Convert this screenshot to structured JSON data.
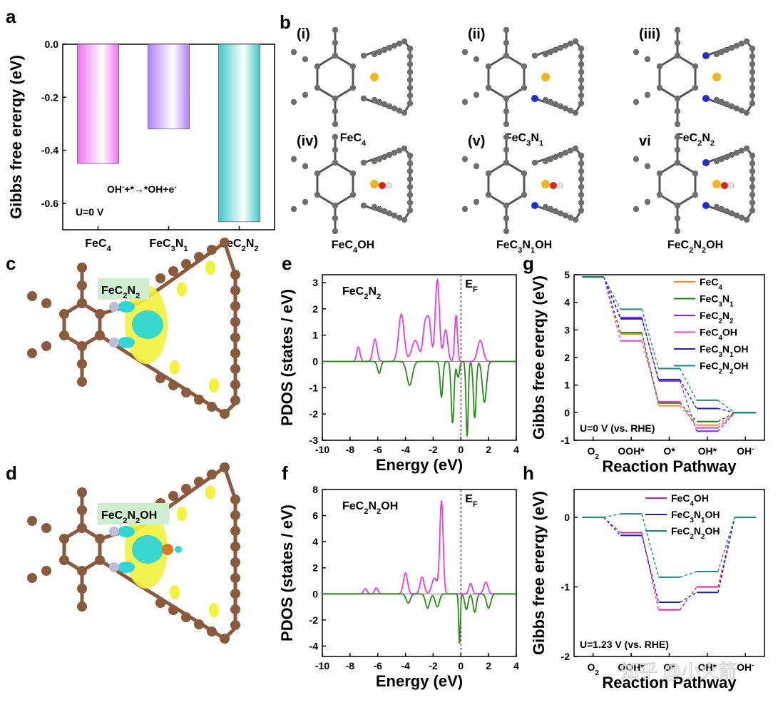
{
  "panels": {
    "a": "a",
    "b": "b",
    "c": "c",
    "d": "d",
    "e": "e",
    "f": "f",
    "g": "g",
    "h": "h"
  },
  "colors": {
    "carbon": "#6e6e6e",
    "fe": "#f2b51e",
    "n": "#1f2fd0",
    "o": "#e0201d",
    "h": "#e8e8e8",
    "c_brown": "#8a5a3c",
    "iso_yellow": "#f2f23c",
    "iso_cyan": "#2ed6d6",
    "pink": "#e83ee0",
    "green": "#2a8a1a"
  },
  "panel_b": {
    "structures": [
      {
        "roman": "(i)",
        "name": "FeC4",
        "n_count": 0,
        "oh": false
      },
      {
        "roman": "(ii)",
        "name": "FeC3N1",
        "n_count": 1,
        "oh": false
      },
      {
        "roman": "(iii)",
        "name": "FeC2N2",
        "n_count": 2,
        "oh": false
      },
      {
        "roman": "(iv)",
        "name": "FeC4OH",
        "n_count": 0,
        "oh": true
      },
      {
        "roman": "(v)",
        "name": "FeC3N1OH",
        "n_count": 1,
        "oh": true
      },
      {
        "roman": "vi",
        "name": "FeC2N2OH",
        "n_count": 2,
        "oh": true
      }
    ]
  },
  "panel_c": {
    "label": "FeC2N2"
  },
  "panel_d": {
    "label": "FeC2N2OH"
  },
  "chart_data": [
    {
      "id": "a",
      "type": "bar",
      "categories": [
        "FeC4",
        "FeC3N1",
        "FeC2N2"
      ],
      "values": [
        -0.45,
        -0.32,
        -0.67
      ],
      "ylabel": "Gibbs free ererqy (eV)",
      "ylim": [
        -0.7,
        0.0
      ],
      "yticks": [
        "0.0",
        "-0.2",
        "-0.4",
        "-0.6"
      ],
      "annotation": "OH-+*→*OH+e-",
      "condition": "U=0 V",
      "bar_colors": [
        "#f070f0",
        "#b080f8",
        "#3ec8c8"
      ]
    },
    {
      "id": "e",
      "type": "line",
      "title": "FeC2N2",
      "xlabel": "Energy (eV)",
      "ylabel": "PDOS (states / eV)",
      "xlim": [
        -10,
        4
      ],
      "ylim": [
        -3,
        3.3
      ],
      "xticks": [
        "-10",
        "-8",
        "-6",
        "-4",
        "-2",
        "0",
        "2",
        "4"
      ],
      "yticks": [
        "3",
        "2",
        "1",
        "0",
        "-1",
        "-2",
        "-3"
      ],
      "fermi_label": "EF",
      "series": [
        {
          "peaks": [
            [
              -7.4,
              0.55,
              0.12
            ],
            [
              -6.2,
              0.85,
              0.15
            ],
            [
              -4.3,
              1.8,
              0.2
            ],
            [
              -3.3,
              0.8,
              0.25
            ],
            [
              -2.6,
              1.3,
              0.15
            ],
            [
              -2.3,
              1.5,
              0.15
            ],
            [
              -1.7,
              3.1,
              0.15
            ],
            [
              -1.1,
              1.2,
              0.15
            ],
            [
              -0.35,
              1.75,
              0.1
            ],
            [
              1.4,
              0.8,
              0.2
            ]
          ]
        },
        {
          "peaks": [
            [
              -5.9,
              -0.45,
              0.12
            ],
            [
              -3.7,
              -0.9,
              0.2
            ],
            [
              -1.4,
              -1.35,
              0.1
            ],
            [
              -0.6,
              -2.35,
              0.1
            ],
            [
              0.45,
              -2.85,
              0.08
            ],
            [
              1.0,
              -2.15,
              0.1
            ],
            [
              1.7,
              -1.55,
              0.15
            ],
            [
              -0.2,
              -0.6,
              0.1
            ]
          ]
        }
      ]
    },
    {
      "id": "f",
      "type": "line",
      "title": "FeC2N2OH",
      "xlabel": "Energy (eV)",
      "ylabel": "PDOS (states / eV)",
      "xlim": [
        -10,
        4
      ],
      "ylim": [
        -4.8,
        8
      ],
      "xticks": [
        "-10",
        "-8",
        "-6",
        "-4",
        "-2",
        "0",
        "2",
        "4"
      ],
      "yticks": [
        "8",
        "6",
        "4",
        "2",
        "0",
        "-2",
        "-4"
      ],
      "fermi_label": "EF",
      "series": [
        {
          "peaks": [
            [
              -6.9,
              0.4,
              0.12
            ],
            [
              -6.1,
              0.45,
              0.12
            ],
            [
              -4.0,
              1.6,
              0.15
            ],
            [
              -2.8,
              1.3,
              0.15
            ],
            [
              -1.4,
              7.1,
              0.12
            ],
            [
              -1.9,
              1.2,
              0.2
            ],
            [
              0.7,
              0.8,
              0.12
            ],
            [
              1.8,
              0.9,
              0.15
            ]
          ]
        },
        {
          "peaks": [
            [
              -3.8,
              -0.7,
              0.15
            ],
            [
              -2.4,
              -1.1,
              0.15
            ],
            [
              -1.7,
              -1.0,
              0.15
            ],
            [
              -0.1,
              -3.8,
              0.06
            ],
            [
              0.4,
              -1.2,
              0.12
            ],
            [
              1.0,
              -1.4,
              0.12
            ],
            [
              2.0,
              -1.1,
              0.15
            ]
          ]
        }
      ]
    },
    {
      "id": "g",
      "type": "line",
      "xlabel": "Reaction Pathway",
      "ylabel": "Gibbs free ererqy (eV)",
      "categories": [
        "O2",
        "OOH*",
        "O*",
        "OH*",
        "OH-"
      ],
      "ylim": [
        -1,
        5
      ],
      "yticks": [
        "5",
        "4",
        "3",
        "2",
        "1",
        "0",
        "-1"
      ],
      "condition": "U=0 V (vs. RHE)",
      "series": [
        {
          "name": "FeC4",
          "values": [
            4.92,
            2.85,
            0.25,
            -0.45,
            0
          ]
        },
        {
          "name": "FeC3N1",
          "values": [
            4.92,
            2.9,
            0.35,
            -0.32,
            0
          ]
        },
        {
          "name": "FeC2N2",
          "values": [
            4.92,
            3.45,
            1.15,
            -0.67,
            0
          ]
        },
        {
          "name": "FeC4OH",
          "values": [
            4.92,
            2.6,
            0.4,
            -0.55,
            0
          ]
        },
        {
          "name": "FeC3N1OH",
          "values": [
            4.92,
            3.4,
            1.2,
            0.15,
            0
          ]
        },
        {
          "name": "FeC2N2OH",
          "values": [
            4.92,
            3.75,
            1.6,
            0.45,
            0
          ]
        }
      ]
    },
    {
      "id": "h",
      "type": "line",
      "xlabel": "Reaction Pathway",
      "ylabel": "Gibbs free ererqy (eV)",
      "categories": [
        "O2",
        "OOH*",
        "O*",
        "OH*",
        "OH-"
      ],
      "ylim": [
        -2,
        0.4
      ],
      "yticks": [
        "0",
        "-1",
        "-2"
      ],
      "condition": "U=1.23 V (vs. RHE)",
      "series": [
        {
          "name": "FeC4OH",
          "values": [
            0,
            -0.22,
            -1.33,
            -1.0,
            0
          ]
        },
        {
          "name": "FeC3N1OH",
          "values": [
            0,
            -0.26,
            -1.22,
            -1.08,
            0
          ]
        },
        {
          "name": "FeC2N2OH",
          "values": [
            0,
            0.05,
            -0.86,
            -0.78,
            0
          ]
        }
      ]
    }
  ],
  "series_colors": [
    "#ff8c1a",
    "#1e7a1e",
    "#8a2be2",
    "#e83ee0",
    "#1f1fb0",
    "#1a8a80"
  ],
  "series_colors_h": [
    "#e0208a",
    "#1f1fb0",
    "#1a8a80"
  ],
  "watermark": "知乎 @小火箭"
}
